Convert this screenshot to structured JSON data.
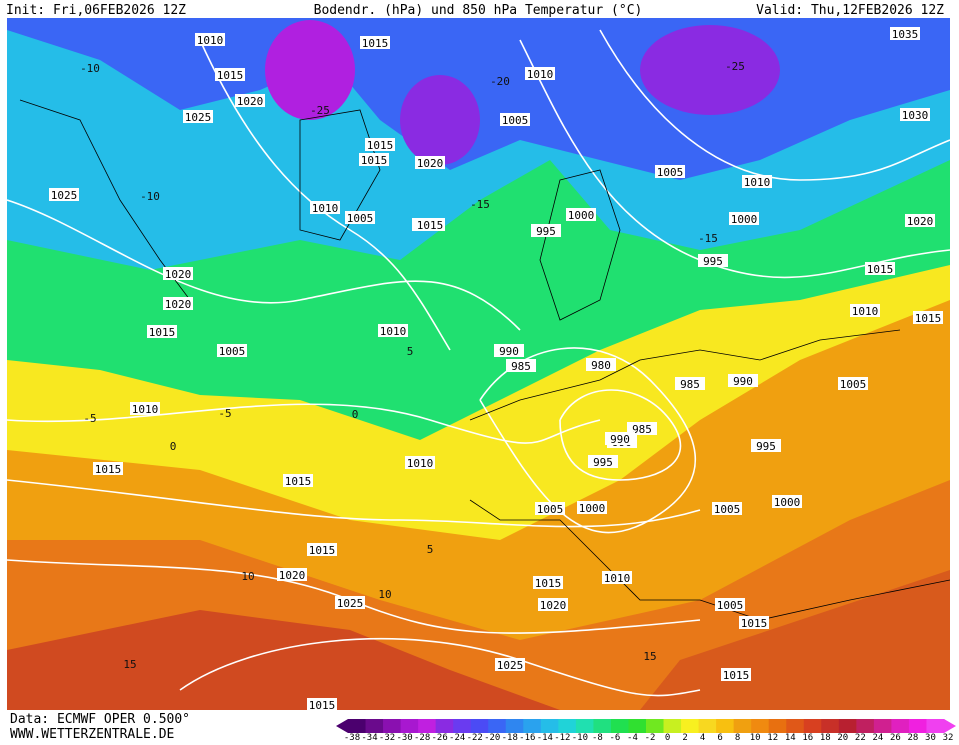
{
  "header": {
    "init": "Init: Fri,06FEB2026 12Z",
    "title": "Bodendr. (hPa) und 850 hPa Temperatur (°C)",
    "valid": "Valid: Thu,12FEB2026 12Z"
  },
  "footer": {
    "data": "Data: ECMWF OPER 0.500°",
    "site": "WWW.WETTERZENTRALE.DE"
  },
  "legend": {
    "ticks": [
      -38,
      -34,
      -32,
      -30,
      -28,
      -26,
      -24,
      -22,
      -20,
      -18,
      -16,
      -14,
      -12,
      -10,
      -8,
      -6,
      -4,
      -2,
      0,
      2,
      4,
      6,
      8,
      10,
      12,
      14,
      16,
      18,
      20,
      22,
      24,
      26,
      28,
      30,
      32
    ],
    "colors": [
      "#4b006e",
      "#6a0a8c",
      "#8a10b0",
      "#a818d0",
      "#c020e0",
      "#8a2be2",
      "#6a3bf0",
      "#4b4bf5",
      "#3a66f5",
      "#2f86f0",
      "#2aa2ee",
      "#25bde8",
      "#20d3d8",
      "#20e0b0",
      "#20e080",
      "#20e050",
      "#30e030",
      "#70e820",
      "#c8f020",
      "#f8f020",
      "#f8d820",
      "#f8c010",
      "#f0a010",
      "#f08a10",
      "#e87010",
      "#e05818",
      "#d84020",
      "#c83028",
      "#b82030",
      "#c02060",
      "#d02090",
      "#e020c0",
      "#f020e0",
      "#f040f0"
    ]
  },
  "isobar_labels": [
    "1010",
    "1015",
    "1020",
    "1015",
    "1020",
    "1025",
    "1025",
    "1020",
    "1015",
    "1015",
    "1010",
    "1005",
    "1010",
    "1015",
    "1020",
    "1015",
    "1005",
    "1015",
    "1010",
    "1015",
    "1015",
    "1005",
    "1015",
    "1010",
    "1005",
    "1000",
    "995",
    "1010",
    "990",
    "985",
    "980",
    "985",
    "990",
    "985",
    "990",
    "995",
    "995",
    "1000",
    "1005",
    "1000",
    "990",
    "1010",
    "1005",
    "1000",
    "1005",
    "1010",
    "1015",
    "1020",
    "1025",
    "1025",
    "1015",
    "1015",
    "1020",
    "1015",
    "1035",
    "1030",
    "1020",
    "1015",
    "1010",
    "1015",
    "1005",
    "995"
  ],
  "temp_labels": [
    "-10",
    "-20",
    "-25",
    "-15",
    "-15",
    "-10",
    "-5",
    "0",
    "5",
    "10",
    "15",
    "-5",
    "0",
    "5",
    "10",
    "15",
    "-25"
  ]
}
